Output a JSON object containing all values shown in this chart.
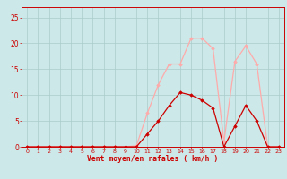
{
  "x": [
    0,
    1,
    2,
    3,
    4,
    5,
    6,
    7,
    8,
    9,
    10,
    11,
    12,
    13,
    14,
    15,
    16,
    17,
    18,
    19,
    20,
    21,
    22,
    23
  ],
  "wind_mean": [
    0,
    0,
    0,
    0,
    0,
    0,
    0,
    0,
    0,
    0,
    0,
    2.5,
    5,
    8,
    10.5,
    10,
    9,
    7.5,
    0,
    4,
    8,
    5,
    0,
    0
  ],
  "wind_gust": [
    0,
    0,
    0,
    0,
    0,
    0,
    0,
    0,
    0,
    0,
    0.2,
    6.5,
    12,
    16,
    16,
    21,
    21,
    19,
    1,
    16.5,
    19.5,
    16,
    0,
    0
  ],
  "mean_color": "#cc0000",
  "gust_color": "#ffaaaa",
  "bg_color": "#cce8e8",
  "grid_color": "#aacccc",
  "xlabel": "Vent moyen/en rafales ( km/h )",
  "xlim": [
    -0.5,
    23.5
  ],
  "ylim": [
    0,
    27
  ],
  "yticks": [
    0,
    5,
    10,
    15,
    20,
    25
  ],
  "xticks": [
    0,
    1,
    2,
    3,
    4,
    5,
    6,
    7,
    8,
    9,
    10,
    11,
    12,
    13,
    14,
    15,
    16,
    17,
    18,
    19,
    20,
    21,
    22,
    23
  ],
  "tick_color": "#cc0000",
  "label_color": "#cc0000",
  "spine_color": "#cc0000",
  "axis_line_color": "#cc0000"
}
